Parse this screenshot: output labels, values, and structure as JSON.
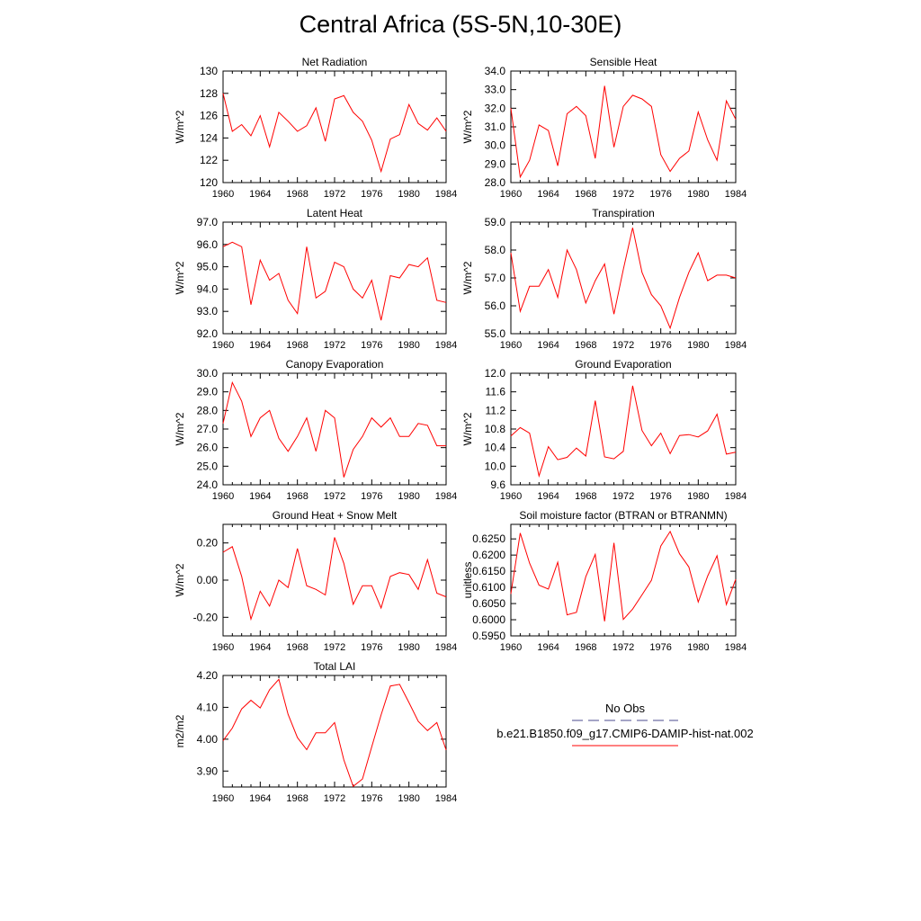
{
  "title": "Central Africa (5S-5N,10-30E)",
  "legend": {
    "obs_label": "No Obs",
    "model_label": "b.e21.B1850.f09_g17.CMIP6-DAMIP-hist-nat.002",
    "obs_color": "#4b4b8c",
    "model_color": "#ff0000"
  },
  "colors": {
    "series": "#ff0000",
    "axis": "#000000"
  },
  "chart_data": [
    {
      "type": "line",
      "title": "Net Radiation",
      "xlabel": "",
      "ylabel": "W/m^2",
      "xlim": [
        1960,
        1984
      ],
      "ylim": [
        120,
        130
      ],
      "xticks": [
        "1960",
        "1964",
        "1968",
        "1972",
        "1976",
        "1980",
        "1984"
      ],
      "yticks": [
        "120",
        "122",
        "124",
        "126",
        "128",
        "130"
      ],
      "x": [
        1960,
        1961,
        1962,
        1963,
        1964,
        1965,
        1966,
        1967,
        1968,
        1969,
        1970,
        1971,
        1972,
        1973,
        1974,
        1975,
        1976,
        1977,
        1978,
        1979,
        1980,
        1981,
        1982,
        1983,
        1984
      ],
      "series": [
        {
          "values": [
            128.0,
            124.6,
            125.2,
            124.2,
            126.0,
            123.2,
            126.3,
            125.5,
            124.6,
            125.1,
            126.7,
            123.7,
            127.5,
            127.8,
            126.3,
            125.5,
            123.8,
            121.0,
            123.9,
            124.3,
            127.0,
            125.3,
            124.7,
            125.8,
            124.6
          ]
        }
      ]
    },
    {
      "type": "line",
      "title": "Sensible Heat",
      "xlabel": "",
      "ylabel": "W/m^2",
      "xlim": [
        1960,
        1984
      ],
      "ylim": [
        28,
        34
      ],
      "xticks": [
        "1960",
        "1964",
        "1968",
        "1972",
        "1976",
        "1980",
        "1984"
      ],
      "yticks": [
        "28.0",
        "29.0",
        "30.0",
        "31.0",
        "32.0",
        "33.0",
        "34.0"
      ],
      "x": [
        1960,
        1961,
        1962,
        1963,
        1964,
        1965,
        1966,
        1967,
        1968,
        1969,
        1970,
        1971,
        1972,
        1973,
        1974,
        1975,
        1976,
        1977,
        1978,
        1979,
        1980,
        1981,
        1982,
        1983,
        1984
      ],
      "series": [
        {
          "values": [
            32.0,
            28.3,
            29.2,
            31.1,
            30.8,
            28.9,
            31.7,
            32.1,
            31.6,
            29.3,
            33.2,
            29.9,
            32.1,
            32.7,
            32.5,
            32.1,
            29.5,
            28.6,
            29.3,
            29.7,
            31.8,
            30.3,
            29.2,
            32.4,
            31.4
          ]
        }
      ]
    },
    {
      "type": "line",
      "title": "Latent Heat",
      "xlabel": "",
      "ylabel": "W/m^2",
      "xlim": [
        1960,
        1984
      ],
      "ylim": [
        92,
        97
      ],
      "xticks": [
        "1960",
        "1964",
        "1968",
        "1972",
        "1976",
        "1980",
        "1984"
      ],
      "yticks": [
        "92.0",
        "93.0",
        "94.0",
        "95.0",
        "96.0",
        "97.0"
      ],
      "x": [
        1960,
        1961,
        1962,
        1963,
        1964,
        1965,
        1966,
        1967,
        1968,
        1969,
        1970,
        1971,
        1972,
        1973,
        1974,
        1975,
        1976,
        1977,
        1978,
        1979,
        1980,
        1981,
        1982,
        1983,
        1984
      ],
      "series": [
        {
          "values": [
            95.9,
            96.1,
            95.9,
            93.3,
            95.3,
            94.4,
            94.7,
            93.5,
            92.9,
            95.9,
            93.6,
            93.9,
            95.2,
            95.0,
            94.0,
            93.6,
            94.4,
            92.6,
            94.6,
            94.5,
            95.1,
            95.0,
            95.4,
            93.5,
            93.4
          ]
        }
      ]
    },
    {
      "type": "line",
      "title": "Transpiration",
      "xlabel": "",
      "ylabel": "W/m^2",
      "xlim": [
        1960,
        1984
      ],
      "ylim": [
        55,
        59
      ],
      "xticks": [
        "1960",
        "1964",
        "1968",
        "1972",
        "1976",
        "1980",
        "1984"
      ],
      "yticks": [
        "55.0",
        "56.0",
        "57.0",
        "58.0",
        "59.0"
      ],
      "x": [
        1960,
        1961,
        1962,
        1963,
        1964,
        1965,
        1966,
        1967,
        1968,
        1969,
        1970,
        1971,
        1972,
        1973,
        1974,
        1975,
        1976,
        1977,
        1978,
        1979,
        1980,
        1981,
        1982,
        1983,
        1984
      ],
      "series": [
        {
          "values": [
            57.9,
            55.8,
            56.7,
            56.7,
            57.3,
            56.3,
            58.0,
            57.3,
            56.1,
            56.9,
            57.5,
            55.7,
            57.3,
            58.8,
            57.2,
            56.4,
            56.0,
            55.2,
            56.3,
            57.2,
            57.9,
            56.9,
            57.1,
            57.1,
            57.0
          ]
        }
      ]
    },
    {
      "type": "line",
      "title": "Canopy Evaporation",
      "xlabel": "",
      "ylabel": "W/m^2",
      "xlim": [
        1960,
        1984
      ],
      "ylim": [
        24,
        30
      ],
      "xticks": [
        "1960",
        "1964",
        "1968",
        "1972",
        "1976",
        "1980",
        "1984"
      ],
      "yticks": [
        "24.0",
        "25.0",
        "26.0",
        "27.0",
        "28.0",
        "29.0",
        "30.0"
      ],
      "x": [
        1960,
        1961,
        1962,
        1963,
        1964,
        1965,
        1966,
        1967,
        1968,
        1969,
        1970,
        1971,
        1972,
        1973,
        1974,
        1975,
        1976,
        1977,
        1978,
        1979,
        1980,
        1981,
        1982,
        1983,
        1984
      ],
      "series": [
        {
          "values": [
            27.3,
            29.5,
            28.5,
            26.6,
            27.6,
            28.0,
            26.5,
            25.8,
            26.6,
            27.6,
            25.8,
            28.0,
            27.6,
            24.4,
            25.9,
            26.6,
            27.6,
            27.1,
            27.6,
            26.6,
            26.6,
            27.3,
            27.2,
            26.1,
            26.1
          ]
        }
      ]
    },
    {
      "type": "line",
      "title": "Ground Evaporation",
      "xlabel": "",
      "ylabel": "W/m^2",
      "xlim": [
        1960,
        1984
      ],
      "ylim": [
        9.6,
        12.0
      ],
      "xticks": [
        "1960",
        "1964",
        "1968",
        "1972",
        "1976",
        "1980",
        "1984"
      ],
      "yticks": [
        "9.6",
        "10.0",
        "10.4",
        "10.8",
        "11.2",
        "11.6",
        "12.0"
      ],
      "x": [
        1960,
        1961,
        1962,
        1963,
        1964,
        1965,
        1966,
        1967,
        1968,
        1969,
        1970,
        1971,
        1972,
        1973,
        1974,
        1975,
        1976,
        1977,
        1978,
        1979,
        1980,
        1981,
        1982,
        1983,
        1984
      ],
      "series": [
        {
          "values": [
            10.65,
            10.83,
            10.71,
            9.79,
            10.42,
            10.14,
            10.19,
            10.39,
            10.22,
            11.41,
            10.2,
            10.16,
            10.32,
            11.73,
            10.77,
            10.44,
            10.71,
            10.27,
            10.66,
            10.68,
            10.63,
            10.76,
            11.12,
            10.26,
            10.3
          ]
        }
      ]
    },
    {
      "type": "line",
      "title": "Ground Heat + Snow Melt",
      "xlabel": "",
      "ylabel": "W/m^2",
      "xlim": [
        1960,
        1984
      ],
      "ylim": [
        -0.3,
        0.3
      ],
      "xticks": [
        "1960",
        "1964",
        "1968",
        "1972",
        "1976",
        "1980",
        "1984"
      ],
      "yticks": [
        "-0.20",
        "0.00",
        "0.20"
      ],
      "ytick_values": [
        -0.2,
        0.0,
        0.2
      ],
      "x": [
        1960,
        1961,
        1962,
        1963,
        1964,
        1965,
        1966,
        1967,
        1968,
        1969,
        1970,
        1971,
        1972,
        1973,
        1974,
        1975,
        1976,
        1977,
        1978,
        1979,
        1980,
        1981,
        1982,
        1983,
        1984
      ],
      "series": [
        {
          "values": [
            0.15,
            0.18,
            0.02,
            -0.21,
            -0.06,
            -0.14,
            0.0,
            -0.04,
            0.17,
            -0.03,
            -0.05,
            -0.08,
            0.23,
            0.09,
            -0.13,
            -0.03,
            -0.03,
            -0.15,
            0.02,
            0.04,
            0.03,
            -0.05,
            0.11,
            -0.07,
            -0.09
          ]
        }
      ]
    },
    {
      "type": "line",
      "title": "Soil moisture factor (BTRAN or BTRANMN)",
      "xlabel": "",
      "ylabel": "unitless",
      "xlim": [
        1960,
        1984
      ],
      "ylim": [
        0.595,
        0.6295
      ],
      "xticks": [
        "1960",
        "1964",
        "1968",
        "1972",
        "1976",
        "1980",
        "1984"
      ],
      "yticks": [
        "0.5950",
        "0.6000",
        "0.6050",
        "0.6100",
        "0.6150",
        "0.6200",
        "0.6250"
      ],
      "ytick_values": [
        0.595,
        0.6,
        0.605,
        0.61,
        0.615,
        0.62,
        0.625
      ],
      "x": [
        1960,
        1961,
        1962,
        1963,
        1964,
        1965,
        1966,
        1967,
        1968,
        1969,
        1970,
        1971,
        1972,
        1973,
        1974,
        1975,
        1976,
        1977,
        1978,
        1979,
        1980,
        1981,
        1982,
        1983,
        1984
      ],
      "series": [
        {
          "values": [
            0.608,
            0.6268,
            0.6175,
            0.6107,
            0.6095,
            0.6178,
            0.6015,
            0.6023,
            0.6133,
            0.6202,
            0.5995,
            0.6238,
            0.6001,
            0.6033,
            0.6077,
            0.6122,
            0.6228,
            0.6273,
            0.6204,
            0.6163,
            0.6055,
            0.6135,
            0.6198,
            0.6047,
            0.6125
          ]
        }
      ]
    },
    {
      "type": "line",
      "title": "Total LAI",
      "xlabel": "",
      "ylabel": "m2/m2",
      "xlim": [
        1960,
        1984
      ],
      "ylim": [
        3.85,
        4.2
      ],
      "xticks": [
        "1960",
        "1964",
        "1968",
        "1972",
        "1976",
        "1980",
        "1984"
      ],
      "yticks": [
        "3.90",
        "4.00",
        "4.10",
        "4.20"
      ],
      "ytick_values": [
        3.9,
        4.0,
        4.1,
        4.2
      ],
      "x": [
        1960,
        1961,
        1962,
        1963,
        1964,
        1965,
        1966,
        1967,
        1968,
        1969,
        1970,
        1971,
        1972,
        1973,
        1974,
        1975,
        1976,
        1977,
        1978,
        1979,
        1980,
        1981,
        1982,
        1983,
        1984
      ],
      "series": [
        {
          "values": [
            3.995,
            4.035,
            4.095,
            4.122,
            4.098,
            4.155,
            4.188,
            4.078,
            4.005,
            3.967,
            4.02,
            4.02,
            4.052,
            3.935,
            3.852,
            3.875,
            3.976,
            4.076,
            4.167,
            4.172,
            4.115,
            4.056,
            4.027,
            4.052,
            3.966
          ]
        }
      ]
    }
  ]
}
